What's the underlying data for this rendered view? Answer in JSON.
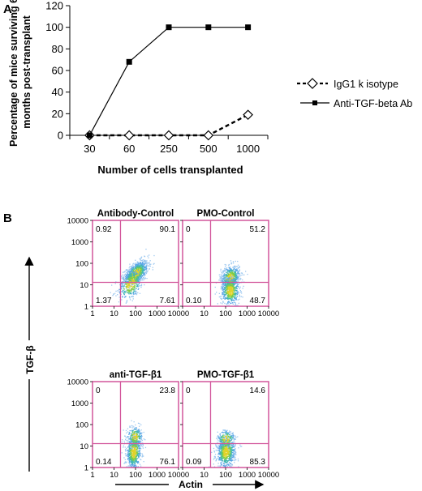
{
  "panel_a": {
    "label": "A",
    "chart_data": {
      "type": "line",
      "categories": [
        "30",
        "60",
        "250",
        "500",
        "1000"
      ],
      "series": [
        {
          "name": "IgG1 k isotype",
          "values": [
            0,
            0,
            0,
            0,
            19
          ],
          "style": "dashed",
          "marker": "open-diamond"
        },
        {
          "name": "Anti-TGF-beta Ab",
          "values": [
            0,
            68,
            100,
            100,
            100
          ],
          "style": "solid",
          "marker": "filled-square"
        }
      ],
      "xlabel": "Number of cells transplanted",
      "ylabel_lines": [
        "Percentage of mice surviving 6",
        "months post-transplant"
      ],
      "ylim": [
        0,
        120
      ],
      "yticks": [
        0,
        20,
        40,
        60,
        80,
        100,
        120
      ],
      "grid": false,
      "legend_position": "right"
    }
  },
  "panel_b": {
    "label": "B",
    "y_axis_label": "TGF-β",
    "x_axis_label": "Actin",
    "tick_labels": [
      "1",
      "10",
      "100",
      "1000",
      "10000"
    ],
    "chart_data": [
      {
        "type": "scatter",
        "title": "Antibody-Control",
        "quadrants": {
          "upper_left": "0.92",
          "upper_right": "90.1",
          "lower_left": "1.37",
          "lower_right": "7.61"
        }
      },
      {
        "type": "scatter",
        "title": "PMO-Control",
        "quadrants": {
          "upper_left": "0",
          "upper_right": "51.2",
          "lower_left": "0.10",
          "lower_right": "48.7"
        }
      },
      {
        "type": "scatter",
        "title": "anti-TGF-β1",
        "quadrants": {
          "upper_left": "0",
          "upper_right": "23.8",
          "lower_left": "0.14",
          "lower_right": "76.1"
        }
      },
      {
        "type": "scatter",
        "title": "PMO-TGF-β1",
        "quadrants": {
          "upper_left": "0",
          "upper_right": "14.6",
          "lower_left": "0.09",
          "lower_right": "85.3"
        }
      }
    ],
    "gate_color": "#d2569c"
  }
}
